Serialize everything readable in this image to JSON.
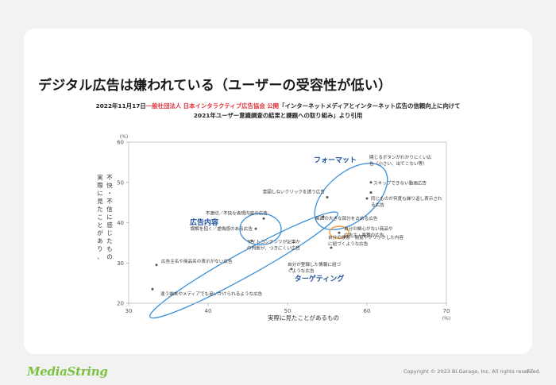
{
  "slide": {
    "title": "デジタル広告は嫌われている（ユーザーの受容性が低い）",
    "source_prefix": "2022年11月17日",
    "source_org": "一般社団法人 日本インタラクティブ広告協会 公開",
    "source_suffix": "「インターネットメディアとインターネット広告の信頼向上に向けて",
    "source_line2": "2021年ユーザー意識調査の結果と課題への取り組み」より引用",
    "logo_text": "MediaString",
    "copyright": "Copyright © 2023 BI.Garage, Inc. All rights reserved.",
    "page_number": "57"
  },
  "colors": {
    "ellipse": "#3a8fd6",
    "orange": "#f29a2e",
    "category_text": "#1f4f9b",
    "point": "#555555",
    "red": "#e0323c",
    "logo": "#7cc242"
  },
  "chart_data": {
    "type": "scatter",
    "xlabel": "実際に見たことがあるもの",
    "ylabel": "不快・不信に感じたもの",
    "y_axis_caption": "実際に見たことがあり、",
    "x_unit": "(%)",
    "y_unit": "(%)",
    "xlim": [
      30,
      70
    ],
    "ylim": [
      20,
      60
    ],
    "xticks": [
      "30",
      "40",
      "50",
      "60",
      "70"
    ],
    "yticks": [
      "20",
      "30",
      "40",
      "50",
      "60"
    ],
    "points": [
      {
        "label": "閉じるボタンがわかりにくい広告（小さい、出てこない等）",
        "x": 60.5,
        "y": 50.0
      },
      {
        "label": "スキップできない動画広告",
        "x": 60.5,
        "y": 47.5
      },
      {
        "label": "同じものが何度も繰り返し表示される広告",
        "x": 60.0,
        "y": 46.0
      },
      {
        "label": "意図しないクリックを誘う広告",
        "x": 55.0,
        "y": 46.3
      },
      {
        "label": "画面の大きな部分を占める広告",
        "x": 54.5,
        "y": 41.5
      },
      {
        "label": "自分の関心がない商品や広告主・業種の広告",
        "x": 56.5,
        "y": 37.5
      },
      {
        "label": "不適切／不快な表現内容の広告",
        "x": 47.0,
        "y": 41.0
      },
      {
        "label": "誤解を招く／虚偽感のある広告",
        "x": 46.0,
        "y": 38.5
      },
      {
        "label": "サイトコンテンツが記事かの判断が、つきにくい広告",
        "x": 45.5,
        "y": 35.5
      },
      {
        "label": "広告主名や商品名の表示がない広告",
        "x": 33.5,
        "y": 29.5
      },
      {
        "label": "自分の検索・閲覧やクリックした内容に紐づくような広告",
        "x": 55.5,
        "y": 33.8
      },
      {
        "label": "自分が登録した情報に紐づくような広告",
        "x": 50.5,
        "y": 28.5
      },
      {
        "label": "違う端末やメディアでも追いかけられるような広告",
        "x": 33.0,
        "y": 23.5
      }
    ],
    "groups": [
      {
        "name": "フォーマット"
      },
      {
        "name": "広告内容"
      },
      {
        "name": "ターゲティング"
      }
    ]
  }
}
